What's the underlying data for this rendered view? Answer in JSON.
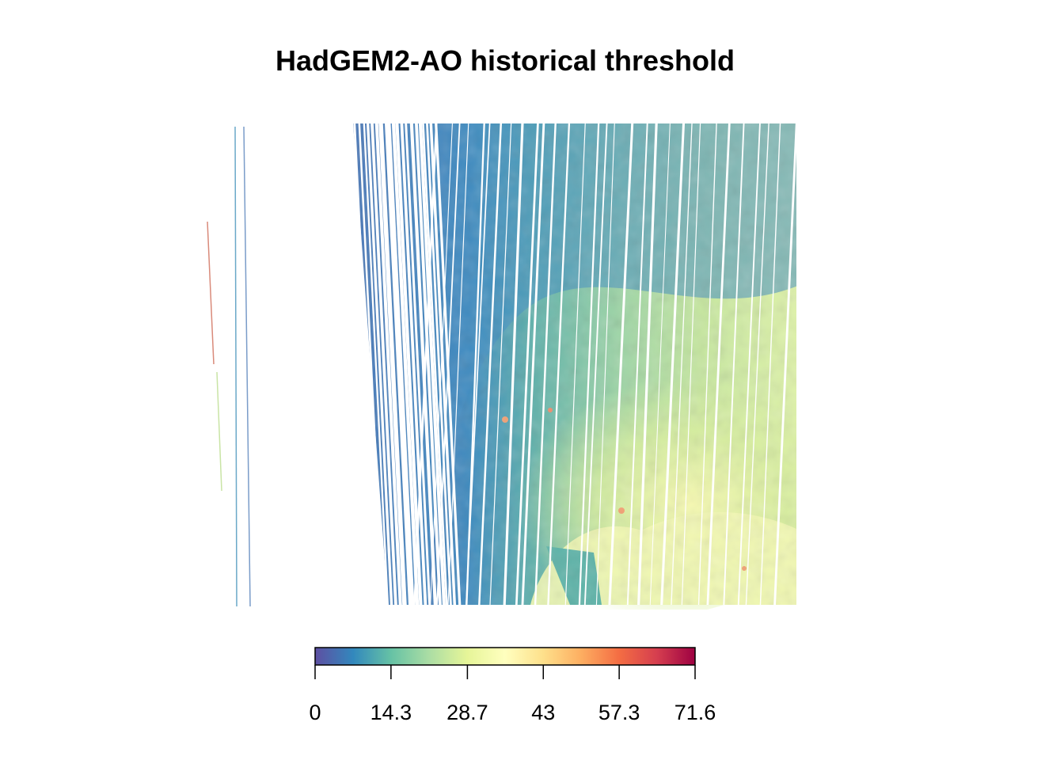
{
  "title": "HadGEM2-AO historical threshold",
  "colorbar": {
    "min": 0,
    "max": 71.6,
    "tick_labels": [
      "0",
      "14.3",
      "28.7",
      "43",
      "57.3",
      "71.6"
    ],
    "tick_values": [
      0,
      14.3,
      28.7,
      43,
      57.3,
      71.6
    ],
    "palette": [
      "#5e4fa2",
      "#3288bd",
      "#66c2a5",
      "#abdda4",
      "#e6f598",
      "#ffffbf",
      "#fee08b",
      "#fdae61",
      "#f46d43",
      "#d53e4f",
      "#9e0142"
    ]
  }
}
